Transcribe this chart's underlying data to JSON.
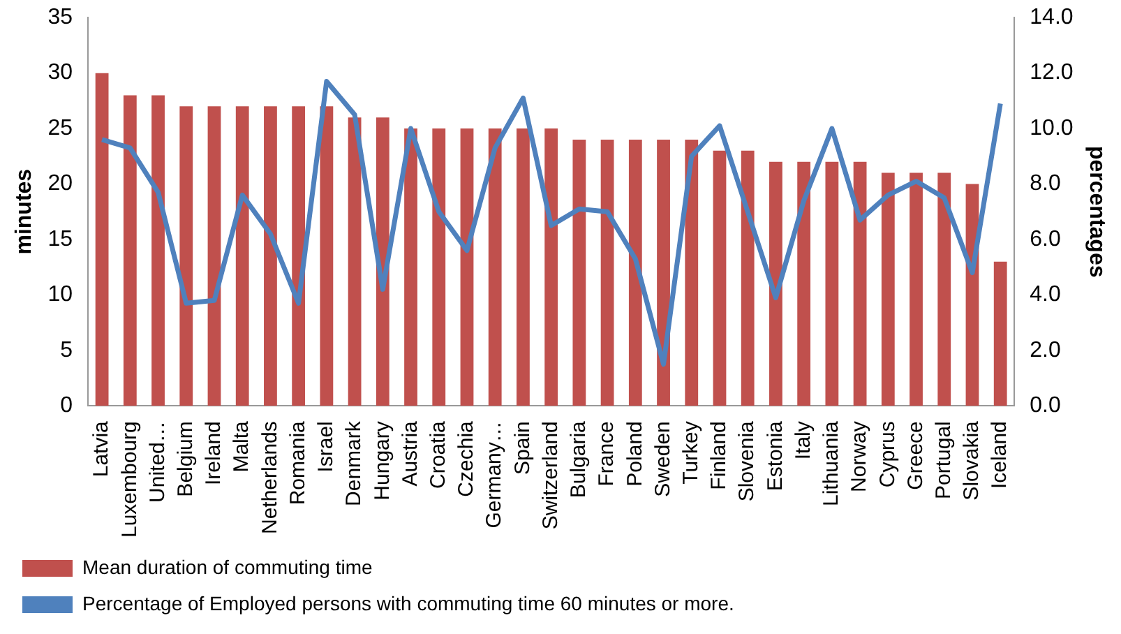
{
  "chart_data": {
    "type": "bar",
    "ylabel": "minutes",
    "y2label": "percentages",
    "categories": [
      "Latvia",
      "Luxembourg",
      "United…",
      "Belgium",
      "Ireland",
      "Malta",
      "Netherlands",
      "Romania",
      "Israel",
      "Denmark",
      "Hungary",
      "Austria",
      "Croatia",
      "Czechia",
      "Germany…",
      "Spain",
      "Switzerland",
      "Bulgaria",
      "France",
      "Poland",
      "Sweden",
      "Turkey",
      "Finland",
      "Slovenia",
      "Estonia",
      "Italy",
      "Lithuania",
      "Norway",
      "Cyprus",
      "Greece",
      "Portugal",
      "Slovakia",
      "Iceland"
    ],
    "series": [
      {
        "name": "Mean duration of commuting time",
        "color": "#c0504d",
        "values": [
          30,
          28,
          28,
          27,
          27,
          27,
          27,
          27,
          27,
          26,
          26,
          25,
          25,
          25,
          25,
          25,
          25,
          24,
          24,
          24,
          24,
          24,
          23,
          23,
          22,
          22,
          22,
          22,
          21,
          21,
          21,
          20,
          13
        ]
      },
      {
        "name": "Percentage of Employed persons with commuting time 60 minutes or more.",
        "type": "line",
        "axis": "y2",
        "color": "#4f81bd",
        "values": [
          9.6,
          9.3,
          7.7,
          3.7,
          3.8,
          7.6,
          6.2,
          3.7,
          11.7,
          10.5,
          4.2,
          10.0,
          7.0,
          5.6,
          9.3,
          11.1,
          6.5,
          7.1,
          7.0,
          5.3,
          1.5,
          9.0,
          10.1,
          7.0,
          3.9,
          7.4,
          10.0,
          6.7,
          7.6,
          8.1,
          7.5,
          4.8,
          10.9
        ]
      }
    ],
    "ylim": [
      0,
      35
    ],
    "yticks": [
      0,
      5,
      10,
      15,
      20,
      25,
      30,
      35
    ],
    "y2lim": [
      0,
      14
    ],
    "y2ticks": [
      {
        "value": 0,
        "label": "0.0"
      },
      {
        "value": 2,
        "label": "2.0"
      },
      {
        "value": 4,
        "label": "4.0"
      },
      {
        "value": 6,
        "label": "6.0"
      },
      {
        "value": 8,
        "label": "8.0"
      },
      {
        "value": 10,
        "label": "10.0"
      },
      {
        "value": 12,
        "label": "12.0"
      },
      {
        "value": 14,
        "label": "14.0"
      }
    ],
    "grid": false,
    "legend": "bottom",
    "marker": "none",
    "line_style": "solid"
  }
}
